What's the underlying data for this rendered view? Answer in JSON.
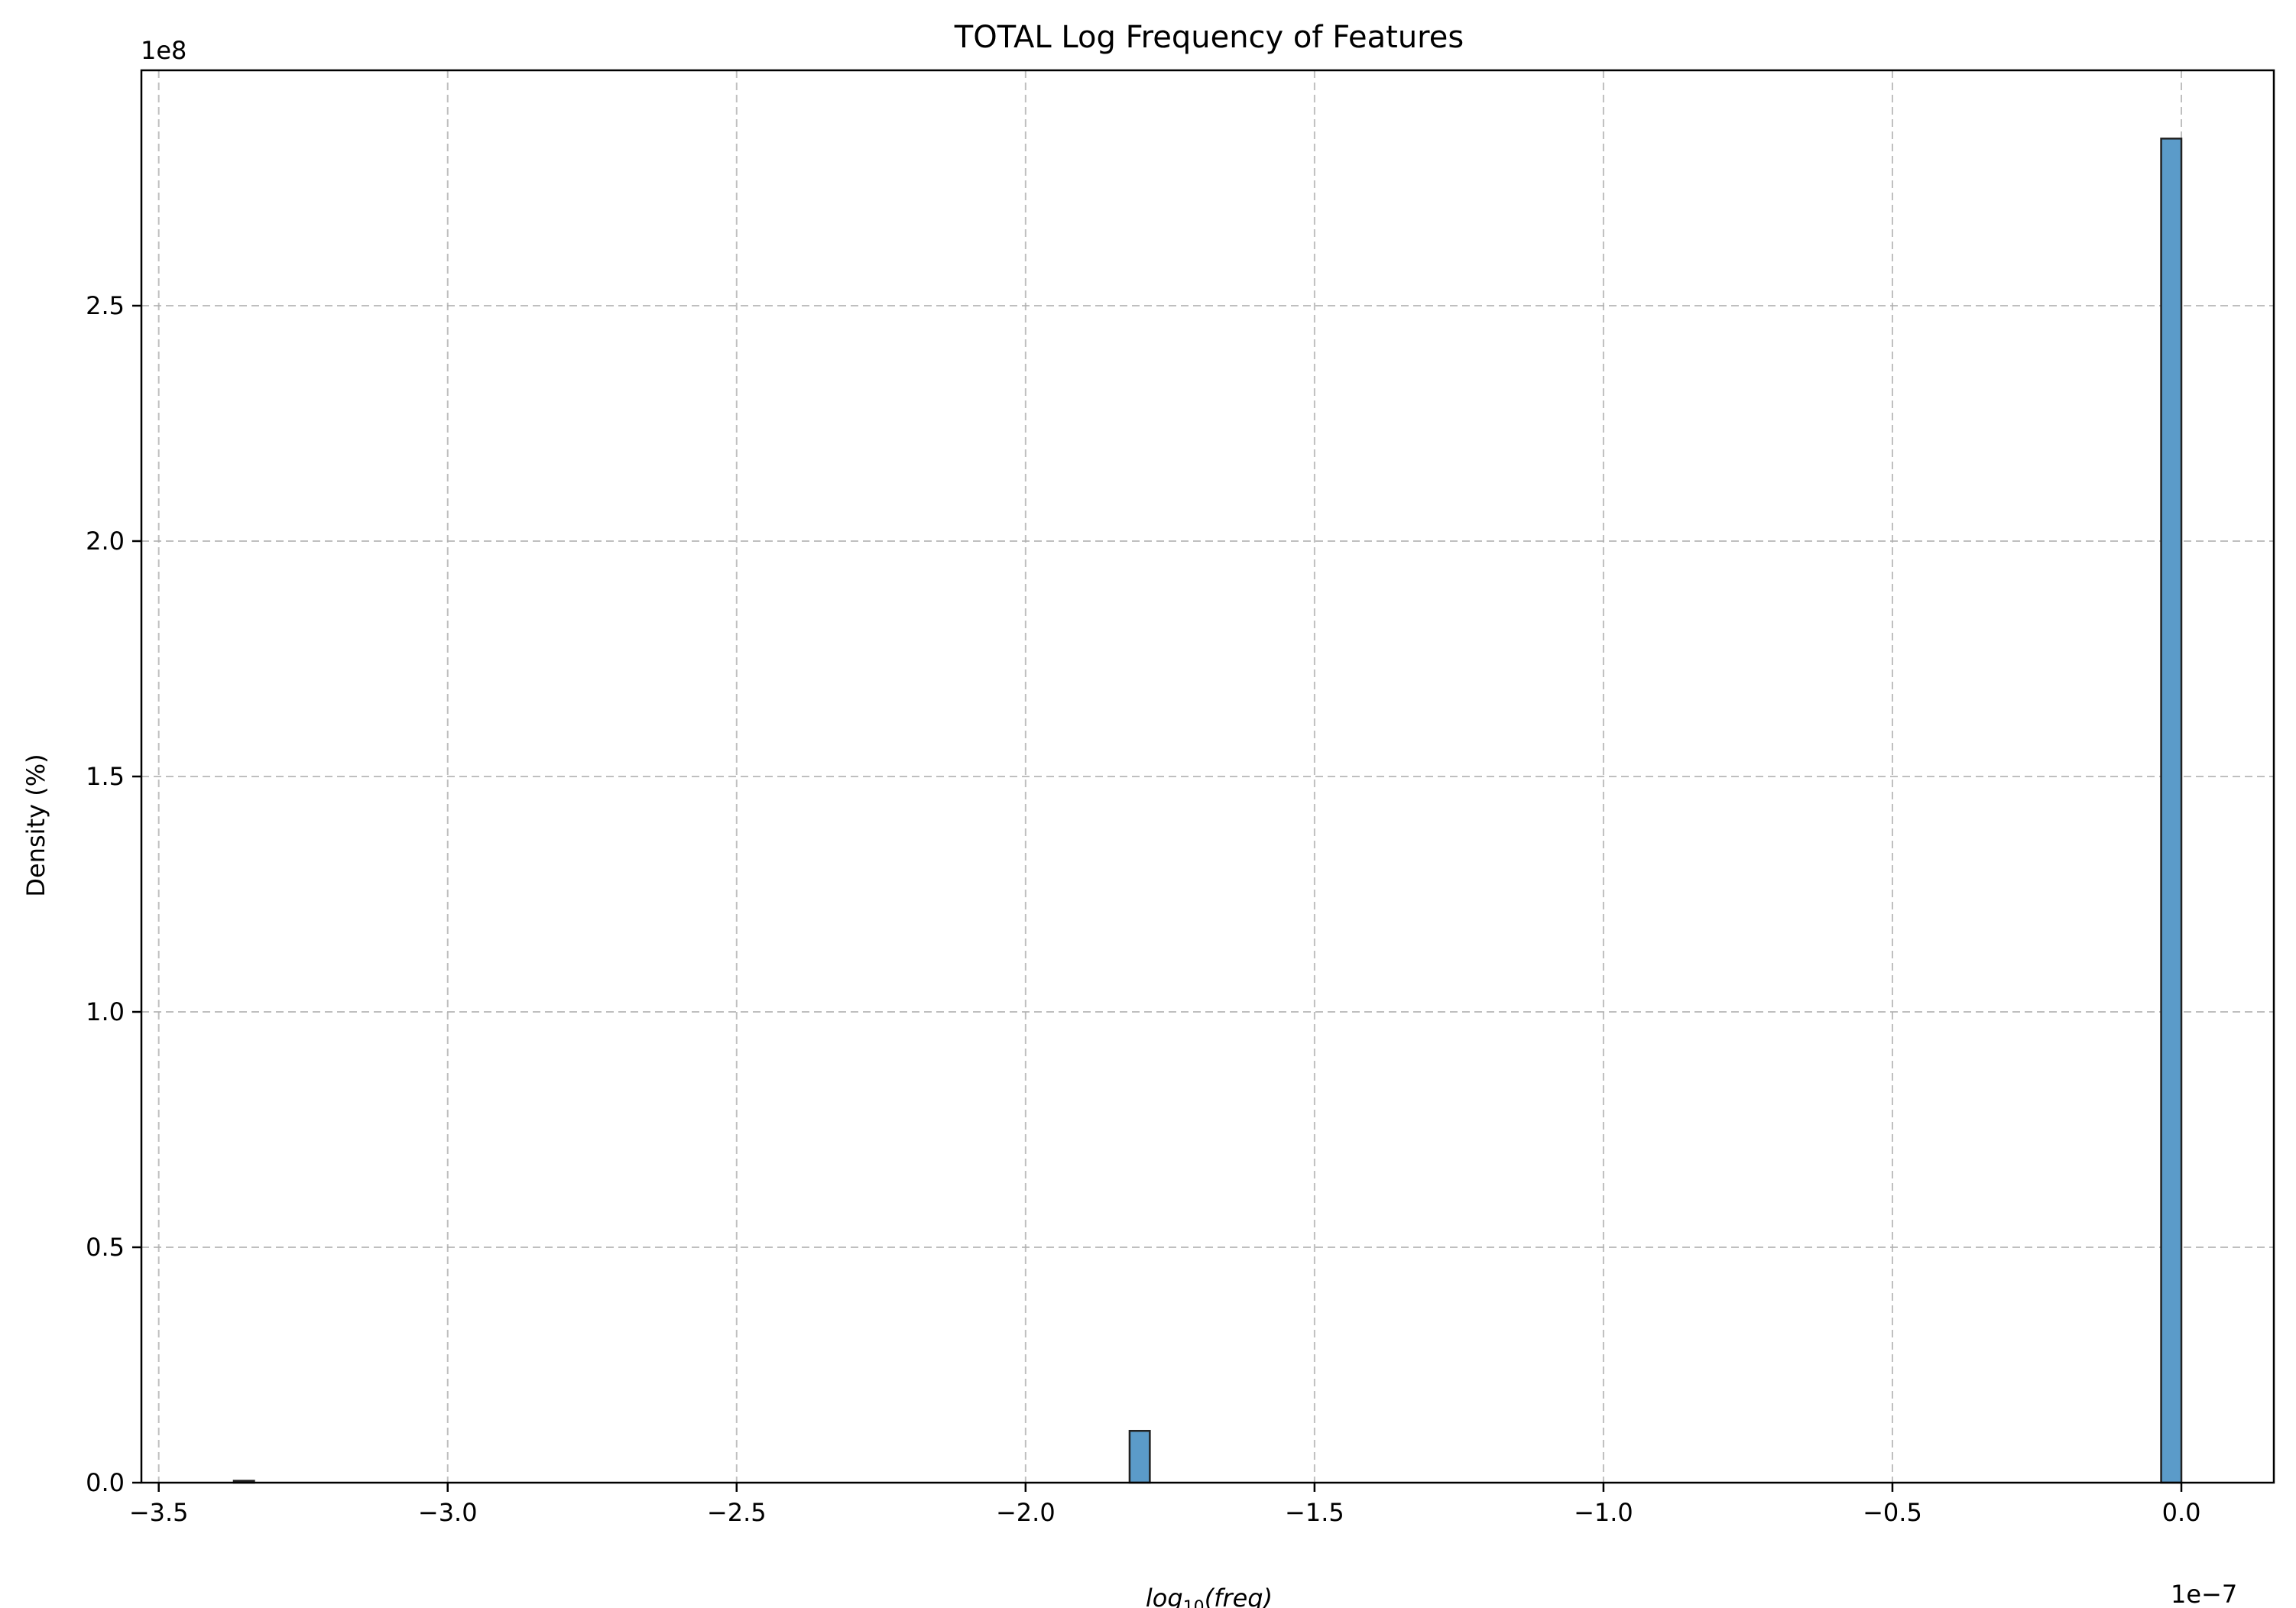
{
  "chart_data": {
    "type": "bar",
    "title": "TOTAL Log Frequency of Features",
    "xlabel_base": "log",
    "xlabel_sub": "10",
    "xlabel_arg": "(freq)",
    "ylabel": "Density (%)",
    "x_offset_text": "1e−7",
    "y_offset_text": "1e8",
    "x_scale": 1e-07,
    "y_scale": 100000000.0,
    "xlim": [
      -3.53,
      0.16
    ],
    "ylim": [
      0,
      3.0
    ],
    "x_ticks": [
      -3.5,
      -3.0,
      -2.5,
      -2.0,
      -1.5,
      -1.0,
      -0.5,
      0.0
    ],
    "x_tick_labels": [
      "−3.5",
      "−3.0",
      "−2.5",
      "−2.0",
      "−1.5",
      "−1.0",
      "−0.5",
      "0.0"
    ],
    "y_ticks": [
      0.0,
      0.5,
      1.0,
      1.5,
      2.0,
      2.5
    ],
    "y_tick_labels": [
      "0.0",
      "0.5",
      "1.0",
      "1.5",
      "2.0",
      "2.5"
    ],
    "grid": true,
    "bar_color": "#5b9bc9",
    "bar_edge_color": "#222222",
    "bins": [
      {
        "x0": -3.37,
        "x1": -3.335,
        "value": 0.004
      },
      {
        "x0": -1.82,
        "x1": -1.785,
        "value": 0.11
      },
      {
        "x0": -0.035,
        "x1": 0.0,
        "value": 2.855
      }
    ]
  }
}
